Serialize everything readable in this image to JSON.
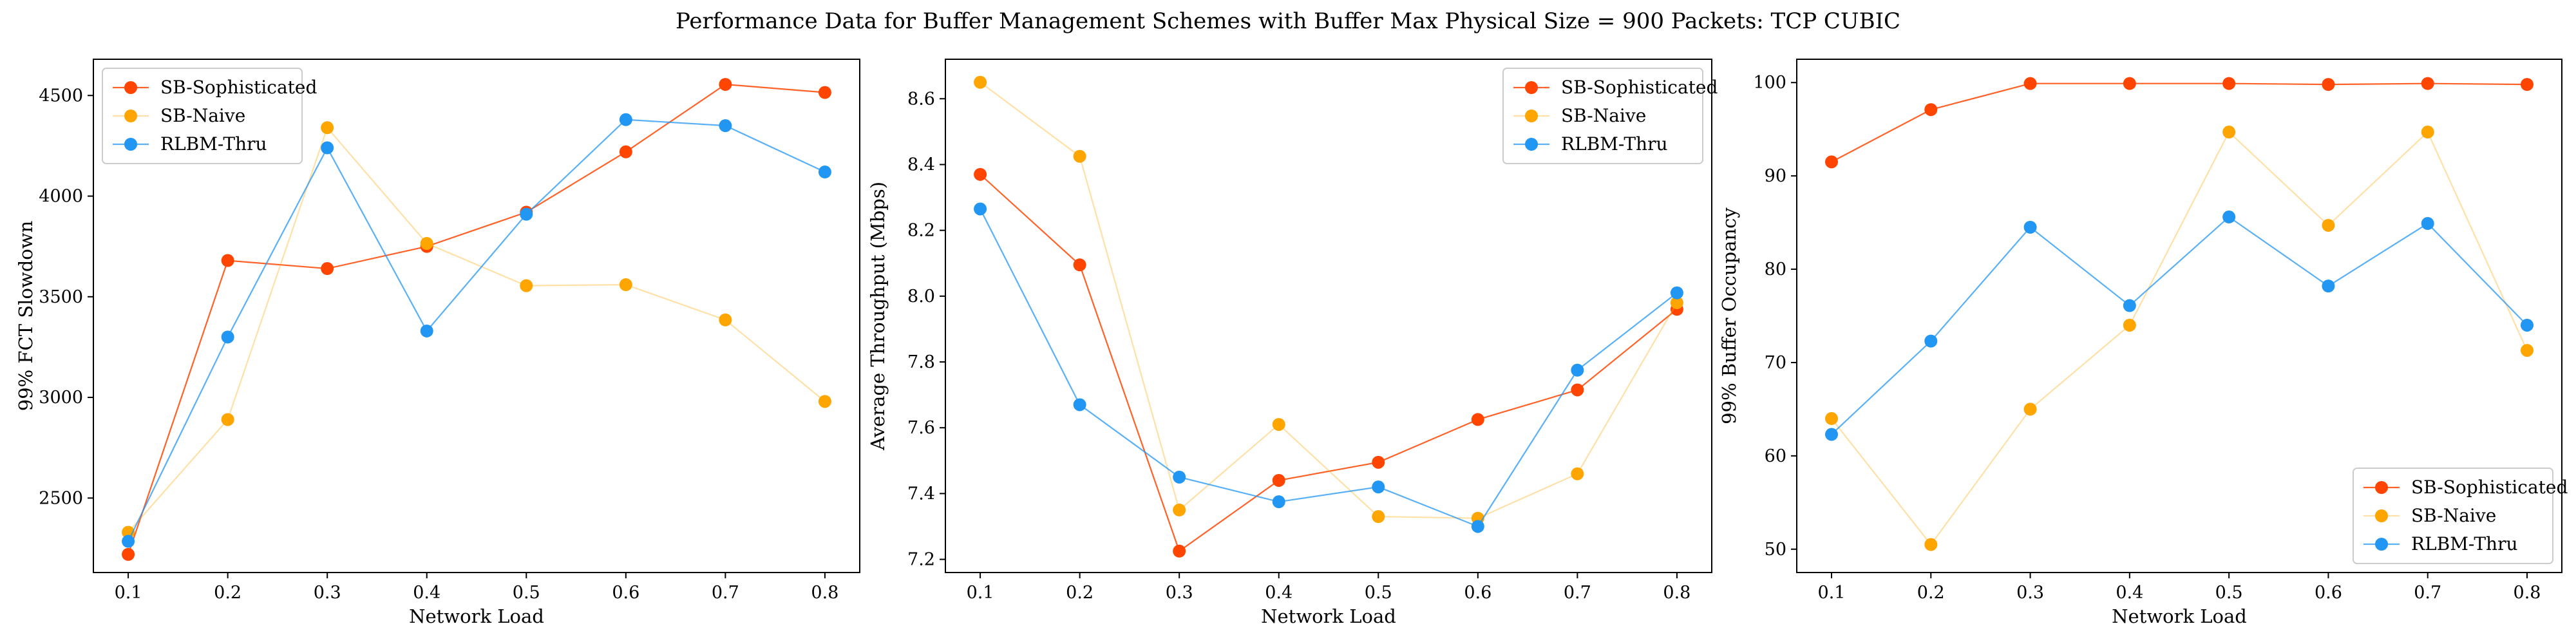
{
  "figure": {
    "title": "Performance Data for Buffer Management Schemes with Buffer Max Physical Size = 900 Packets: TCP CUBIC"
  },
  "colors": {
    "SB-Sophisticated": "#FF4500",
    "SB-Naive": "#FFA500",
    "RLBM-Thru": "#2196F3"
  },
  "chart_data": [
    {
      "type": "line",
      "title": "",
      "xlabel": "Network Load",
      "ylabel": "99% FCT Slowdown",
      "x": [
        0.1,
        0.2,
        0.3,
        0.4,
        0.5,
        0.6,
        0.7,
        0.8
      ],
      "xticks": [
        "0.1",
        "0.2",
        "0.3",
        "0.4",
        "0.5",
        "0.6",
        "0.7",
        "0.8"
      ],
      "xlim": [
        0.065,
        0.835
      ],
      "ylim": [
        2130,
        4680
      ],
      "yticks": [
        2500,
        3000,
        3500,
        4000,
        4500
      ],
      "legend": "top-left",
      "grid": false,
      "series": [
        {
          "name": "SB-Sophisticated",
          "values": [
            2220,
            3680,
            3640,
            3750,
            3920,
            4220,
            4555,
            4515
          ]
        },
        {
          "name": "SB-Naive",
          "values": [
            2330,
            2890,
            4340,
            3765,
            3555,
            3560,
            3385,
            2980
          ]
        },
        {
          "name": "RLBM-Thru",
          "values": [
            2285,
            3300,
            4240,
            3330,
            3910,
            4380,
            4350,
            4120
          ]
        }
      ]
    },
    {
      "type": "line",
      "title": "",
      "xlabel": "Network Load",
      "ylabel": "Average Throughput (Mbps)",
      "x": [
        0.1,
        0.2,
        0.3,
        0.4,
        0.5,
        0.6,
        0.7,
        0.8
      ],
      "xticks": [
        "0.1",
        "0.2",
        "0.3",
        "0.4",
        "0.5",
        "0.6",
        "0.7",
        "0.8"
      ],
      "xlim": [
        0.065,
        0.835
      ],
      "ylim": [
        7.16,
        8.72
      ],
      "yticks": [
        7.2,
        7.4,
        7.6,
        7.8,
        8.0,
        8.2,
        8.4,
        8.6
      ],
      "yticklabels": [
        "7.2",
        "7.4",
        "7.6",
        "7.8",
        "8.0",
        "8.2",
        "8.4",
        "8.6"
      ],
      "legend": "top-right",
      "grid": false,
      "series": [
        {
          "name": "SB-Sophisticated",
          "values": [
            8.37,
            8.095,
            7.225,
            7.44,
            7.495,
            7.625,
            7.715,
            7.96
          ]
        },
        {
          "name": "SB-Naive",
          "values": [
            8.65,
            8.425,
            7.35,
            7.61,
            7.33,
            7.325,
            7.46,
            7.98
          ]
        },
        {
          "name": "RLBM-Thru",
          "values": [
            8.265,
            7.67,
            7.45,
            7.375,
            7.42,
            7.3,
            7.775,
            8.01
          ]
        }
      ]
    },
    {
      "type": "line",
      "title": "",
      "xlabel": "Network Load",
      "ylabel": "99% Buffer Occupancy",
      "x": [
        0.1,
        0.2,
        0.3,
        0.4,
        0.5,
        0.6,
        0.7,
        0.8
      ],
      "xticks": [
        "0.1",
        "0.2",
        "0.3",
        "0.4",
        "0.5",
        "0.6",
        "0.7",
        "0.8"
      ],
      "xlim": [
        0.065,
        0.835
      ],
      "ylim": [
        47.5,
        102.5
      ],
      "yticks": [
        50,
        60,
        70,
        80,
        90,
        100
      ],
      "legend": "bottom-right",
      "grid": false,
      "series": [
        {
          "name": "SB-Sophisticated",
          "values": [
            91.5,
            97.1,
            99.9,
            99.9,
            99.9,
            99.8,
            99.9,
            99.8
          ]
        },
        {
          "name": "SB-Naive",
          "values": [
            64.0,
            50.5,
            65.0,
            74.0,
            94.7,
            84.7,
            94.7,
            71.3
          ]
        },
        {
          "name": "RLBM-Thru",
          "values": [
            62.3,
            72.3,
            84.5,
            76.1,
            85.6,
            78.2,
            84.9,
            74.0
          ]
        }
      ]
    }
  ]
}
